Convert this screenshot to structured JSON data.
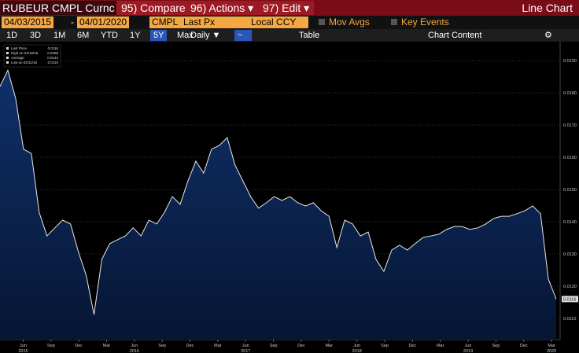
{
  "toolbar": {
    "security": "RUBEUR CMPL Curnc",
    "menu": [
      "95) Compare",
      "96) Actions ▾",
      "97) Edit ▾"
    ],
    "view": "Line Chart"
  },
  "fields": {
    "start_date": "04/03/2015",
    "end_date": "04/01/2020",
    "source": "CMPL",
    "field": "Last Px",
    "currency": "Local CCY",
    "checkboxes": [
      "Mov Avgs",
      "Key Events"
    ]
  },
  "periods": {
    "buttons": [
      "1D",
      "3D",
      "1M",
      "6M",
      "YTD",
      "1Y",
      "5Y",
      "Max"
    ],
    "selected": "5Y",
    "frequency": "Daily ▼",
    "table": "Table",
    "chart_content": "Chart Content"
  },
  "chart_data": {
    "type": "line",
    "legend": [
      {
        "label": "Last Price",
        "value": "0.0116"
      },
      {
        "label": "High on 04/15/15",
        "value": "0.0189"
      },
      {
        "label": "Average",
        "value": "0.0142"
      },
      {
        "label": "Low on 02/11/16",
        "value": "0.0110"
      }
    ],
    "series": [
      {
        "name": "Last Price",
        "color": "#e8e8e8",
        "values": [
          0.0182,
          0.0187,
          0.01783,
          0.01625,
          0.01612,
          0.01429,
          0.01356,
          0.01381,
          0.01405,
          0.01393,
          0.01307,
          0.01234,
          0.01112,
          0.01283,
          0.01332,
          0.01344,
          0.01356,
          0.01381,
          0.01356,
          0.01405,
          0.01393,
          0.01429,
          0.01478,
          0.01454,
          0.01527,
          0.01588,
          0.01551,
          0.01625,
          0.01637,
          0.01661,
          0.01576,
          0.01527,
          0.01478,
          0.01442,
          0.01459,
          0.01478,
          0.01466,
          0.01478,
          0.01459,
          0.01449,
          0.01459,
          0.01434,
          0.01417,
          0.0132,
          0.01405,
          0.01393,
          0.01356,
          0.01368,
          0.01283,
          0.01246,
          0.01312,
          0.01327,
          0.01312,
          0.01332,
          0.01351,
          0.01356,
          0.01361,
          0.01376,
          0.01385,
          0.01385,
          0.01376,
          0.01381,
          0.01393,
          0.0141,
          0.01417,
          0.01417,
          0.01425,
          0.01434,
          0.01449,
          0.01425,
          0.01222,
          0.0116
        ]
      }
    ],
    "last_label": "0.0116",
    "ylim": [
      0.01034,
      0.01959
    ],
    "yticks": [
      {
        "value": 0.011,
        "label": "0.0110"
      },
      {
        "value": 0.012,
        "label": "0.0120"
      },
      {
        "value": 0.013,
        "label": "0.0130"
      },
      {
        "value": 0.014,
        "label": "0.0140"
      },
      {
        "value": 0.015,
        "label": "0.0150"
      },
      {
        "value": 0.016,
        "label": "0.0160"
      },
      {
        "value": 0.017,
        "label": "0.0170"
      },
      {
        "value": 0.018,
        "label": "0.0180"
      },
      {
        "value": 0.019,
        "label": "0.0190"
      }
    ],
    "x_month_labels": [
      "Jun",
      "Sep",
      "Dec",
      "Mar",
      "Jun",
      "Sep",
      "Dec",
      "Mar",
      "Jun",
      "Sep",
      "Dec",
      "Mar",
      "Jun",
      "Sep",
      "Dec",
      "Mar",
      "Jun",
      "Sep",
      "Dec",
      "Mar"
    ],
    "x_year_labels": [
      "2015",
      "2016",
      "2017",
      "2018",
      "2019",
      "2020"
    ],
    "grid": true
  }
}
